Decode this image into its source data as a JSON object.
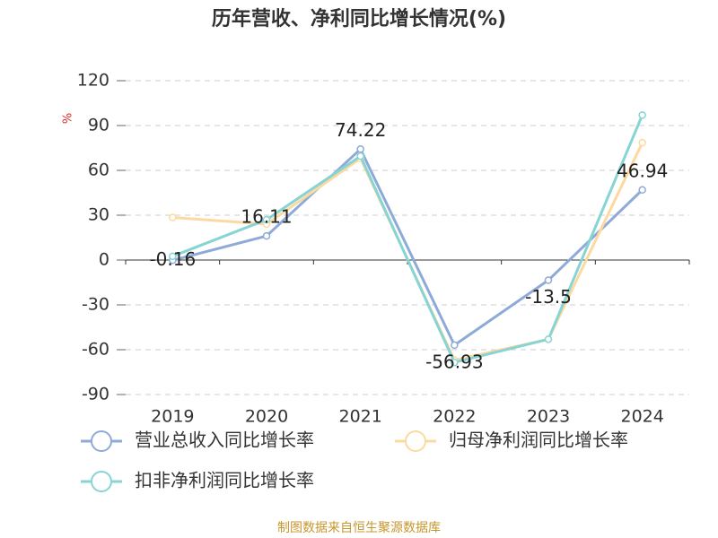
{
  "chart_data": {
    "type": "line",
    "title": "历年营收、净利同比增长情况(%)",
    "y_label": "%",
    "categories": [
      "2019",
      "2020",
      "2021",
      "2022",
      "2023",
      "2024"
    ],
    "series": [
      {
        "name": "营业总收入同比增长率",
        "color": "#8eaad8",
        "values": [
          -0.16,
          16.11,
          74.22,
          -56.93,
          -13.5,
          46.94
        ],
        "data_labels": true
      },
      {
        "name": "归母净利润同比增长率",
        "color": "#fcd9a0",
        "values": [
          28.5,
          24,
          68,
          -67,
          -53,
          78.5
        ]
      },
      {
        "name": "扣非净利润同比增长率",
        "color": "#86d4d4",
        "values": [
          2.5,
          27,
          69.5,
          -68.5,
          -53,
          97
        ]
      }
    ],
    "ylim": [
      -90,
      120
    ],
    "yticks": [
      -90,
      -60,
      -30,
      0,
      30,
      60,
      90,
      120
    ],
    "grid": true,
    "source": "制图数据来自恒生聚源数据库"
  }
}
